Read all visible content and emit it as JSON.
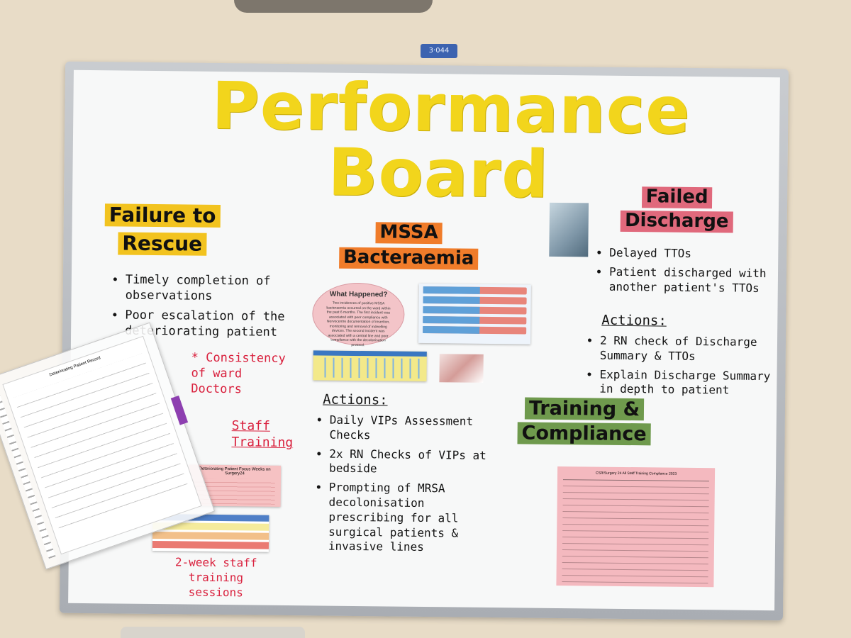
{
  "wall": {
    "tag_text": "3·044"
  },
  "board": {
    "title_line1": "Performance",
    "title_line2": "Board",
    "sections": {
      "failure_to_rescue": {
        "heading_line1": "Failure to",
        "heading_line2": "Rescue",
        "bullets": [
          "Timely completion of observations",
          "Poor escalation of the deteriorating patient"
        ],
        "note": "* Consistency of ward Doctors",
        "staff_training": "Staff Training",
        "focus_sheet_title": "Deteriorating Patient Focus Weeks on Surgery24",
        "sessions_note": "2-week staff training sessions"
      },
      "mssa": {
        "heading_line1": "MSSA",
        "heading_line2": "Bacteraemia",
        "oval_title": "What Happened?",
        "oval_text": "Two incidences of positive MSSA bacteraemia occurred on the ward within the past 6 months. The first incident was associated with poor compliance with Nervecentre documentation of insertion, monitoring and removal of indwelling devices. The second incident was associated with a central line and poor compliance with the decolonisation protocol.",
        "actions_heading": "Actions:",
        "actions": [
          "Daily VIPs Assessment Checks",
          "2x RN Checks of VIPs at bedside",
          "Prompting of MRSA decolonisation prescribing for all surgical patients & invasive lines"
        ]
      },
      "failed_discharge": {
        "heading_line1": "Failed",
        "heading_line2": "Discharge",
        "bullets": [
          "Delayed TTOs",
          "Patient discharged with another patient's TTOs"
        ],
        "actions_heading": "Actions:",
        "actions": [
          "2 RN check of Discharge Summary & TTOs",
          "Explain Discharge Summary in depth to patient"
        ]
      },
      "training": {
        "heading_line1": "Training &",
        "heading_line2": "Compliance",
        "sheet_title": "CSR/Surgery 24 All Staff Training Compliance 2023"
      }
    },
    "clipboard_form": {
      "title": "Deteriorating Patient Record"
    }
  },
  "colors": {
    "title_yellow": "#f2d51c",
    "highlight_yellow": "#f2c31f",
    "highlight_orange": "#f07c2a",
    "highlight_pink": "#e0697c",
    "highlight_green": "#6f9a4d",
    "red_marker": "#d9203d"
  }
}
